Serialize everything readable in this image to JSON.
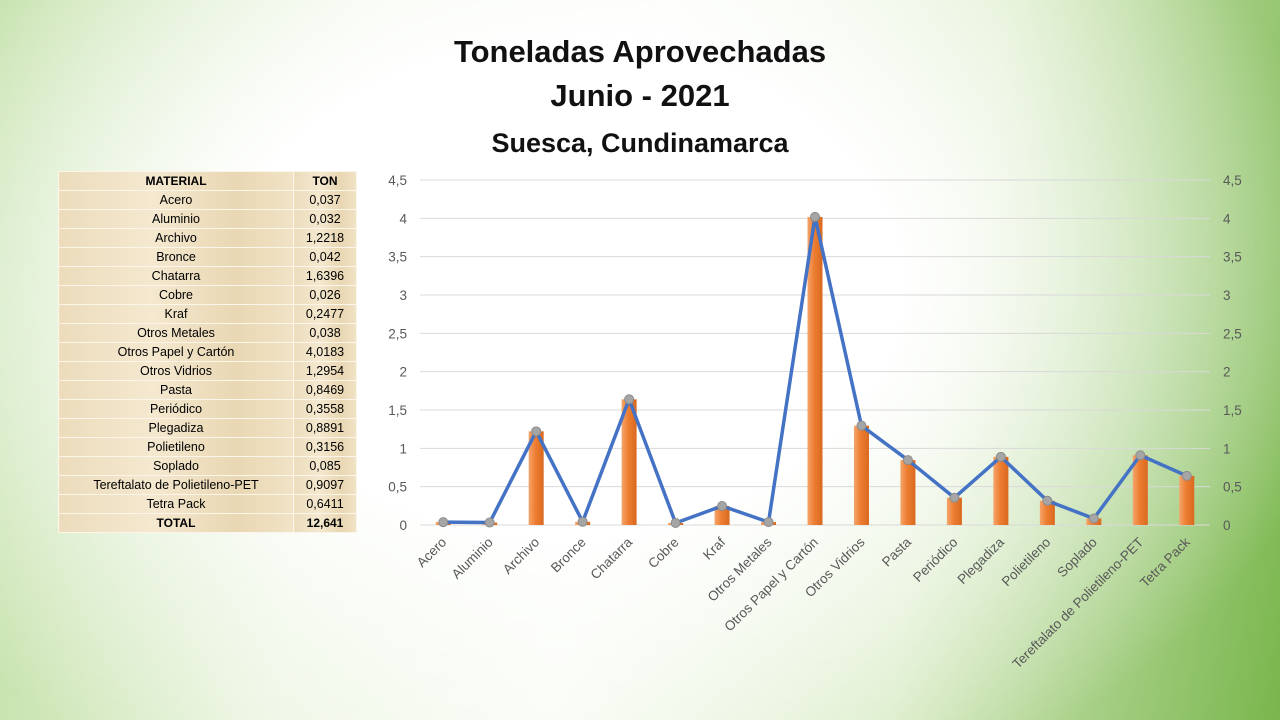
{
  "title": "Toneladas Aprovechadas",
  "subtitle": "Junio - 2021",
  "location": "Suesca, Cundinamarca",
  "table": {
    "header": [
      "MATERIAL",
      "TON"
    ],
    "rows": [
      [
        "Acero",
        "0,037"
      ],
      [
        "Aluminio",
        "0,032"
      ],
      [
        "Archivo",
        "1,2218"
      ],
      [
        "Bronce",
        "0,042"
      ],
      [
        "Chatarra",
        "1,6396"
      ],
      [
        "Cobre",
        "0,026"
      ],
      [
        "Kraf",
        "0,2477"
      ],
      [
        "Otros Metales",
        "0,038"
      ],
      [
        "Otros Papel y Cartón",
        "4,0183"
      ],
      [
        "Otros Vidrios",
        "1,2954"
      ],
      [
        "Pasta",
        "0,8469"
      ],
      [
        "Periódico",
        "0,3558"
      ],
      [
        "Plegadiza",
        "0,8891"
      ],
      [
        "Polietileno",
        "0,3156"
      ],
      [
        "Soplado",
        "0,085"
      ],
      [
        "Tereftalato de Polietileno-PET",
        "0,9097"
      ],
      [
        "Tetra Pack",
        "0,6411"
      ]
    ],
    "total": [
      "TOTAL",
      "12,641"
    ]
  },
  "chart_data": {
    "type": "bar",
    "overlay": "line",
    "categories": [
      "Acero",
      "Aluminio",
      "Archivo",
      "Bronce",
      "Chatarra",
      "Cobre",
      "Kraf",
      "Otros Metales",
      "Otros Papel y Cartón",
      "Otros Vidrios",
      "Pasta",
      "Periódico",
      "Plegadiza",
      "Polietileno",
      "Soplado",
      "Tereftalato de Polietileno-PET",
      "Tetra Pack"
    ],
    "values": [
      0.037,
      0.032,
      1.2218,
      0.042,
      1.6396,
      0.026,
      0.2477,
      0.038,
      4.0183,
      1.2954,
      0.8469,
      0.3558,
      0.8891,
      0.3156,
      0.085,
      0.9097,
      0.6411
    ],
    "ylim": [
      0,
      4.5
    ],
    "yticks": [
      "0",
      "0,5",
      "1",
      "1,5",
      "2",
      "2,5",
      "3",
      "3,5",
      "4",
      "4,5"
    ],
    "secondary_axis": true,
    "grid": true,
    "colors": {
      "bar": "#ed7d31",
      "line": "#4472c4",
      "marker": "#a5a5a5"
    }
  }
}
